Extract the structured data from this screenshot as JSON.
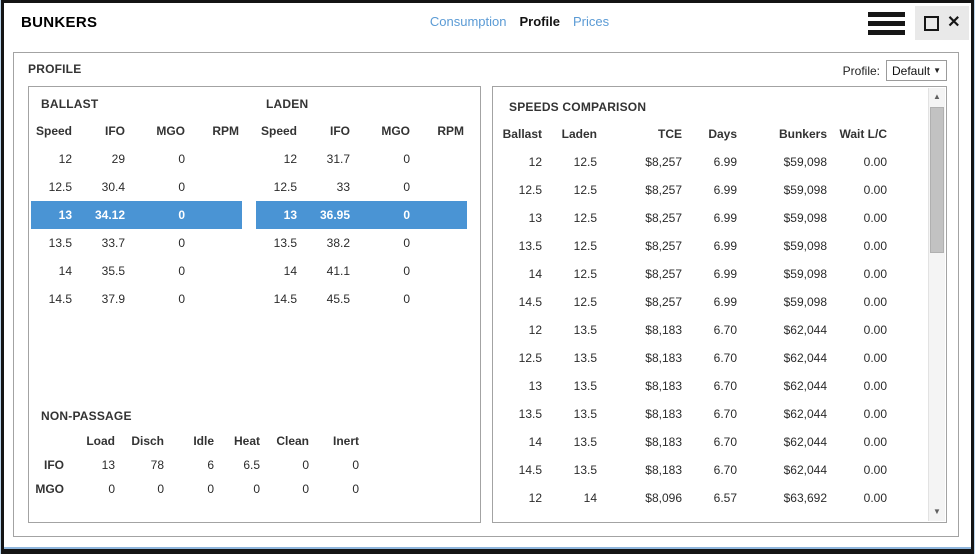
{
  "window": {
    "title": "BUNKERS",
    "tabs": [
      {
        "label": "Consumption",
        "active": false
      },
      {
        "label": "Profile",
        "active": true
      },
      {
        "label": "Prices",
        "active": false
      }
    ]
  },
  "icons": {
    "dropdown_arrow": "▼",
    "scroll_up": "▲",
    "scroll_down": "▼",
    "close": "✕"
  },
  "colors": {
    "highlight": "#4a94d4",
    "link": "#5b9bd5",
    "halo": "#8fb6dd"
  },
  "profile_panel": {
    "title": "PROFILE",
    "selector_label": "Profile:",
    "selector_value": "Default"
  },
  "ballast": {
    "title": "BALLAST",
    "headers": [
      "Speed",
      "IFO",
      "MGO",
      "RPM"
    ],
    "rows": [
      [
        "12",
        "29",
        "0",
        ""
      ],
      [
        "12.5",
        "30.4",
        "0",
        ""
      ],
      [
        "13",
        "34.12",
        "0",
        ""
      ],
      [
        "13.5",
        "33.7",
        "0",
        ""
      ],
      [
        "14",
        "35.5",
        "0",
        ""
      ],
      [
        "14.5",
        "37.9",
        "0",
        ""
      ]
    ],
    "selected_index": 2
  },
  "laden": {
    "title": "LADEN",
    "headers": [
      "Speed",
      "IFO",
      "MGO",
      "RPM"
    ],
    "rows": [
      [
        "12",
        "31.7",
        "0",
        ""
      ],
      [
        "12.5",
        "33",
        "0",
        ""
      ],
      [
        "13",
        "36.95",
        "0",
        ""
      ],
      [
        "13.5",
        "38.2",
        "0",
        ""
      ],
      [
        "14",
        "41.1",
        "0",
        ""
      ],
      [
        "14.5",
        "45.5",
        "0",
        ""
      ]
    ],
    "selected_index": 2
  },
  "non_passage": {
    "title": "NON-PASSAGE",
    "headers": [
      "",
      "Load",
      "Disch",
      "Idle",
      "Heat",
      "Clean",
      "Inert"
    ],
    "rows": [
      [
        "IFO",
        "13",
        "78",
        "6",
        "6.5",
        "0",
        "0"
      ],
      [
        "MGO",
        "0",
        "0",
        "0",
        "0",
        "0",
        "0"
      ]
    ]
  },
  "speeds_comparison": {
    "title": "SPEEDS COMPARISON",
    "headers": [
      "Ballast",
      "Laden",
      "TCE",
      "Days",
      "Bunkers",
      "Wait L/C"
    ],
    "rows": [
      [
        "12",
        "12.5",
        "$8,257",
        "6.99",
        "$59,098",
        "0.00"
      ],
      [
        "12.5",
        "12.5",
        "$8,257",
        "6.99",
        "$59,098",
        "0.00"
      ],
      [
        "13",
        "12.5",
        "$8,257",
        "6.99",
        "$59,098",
        "0.00"
      ],
      [
        "13.5",
        "12.5",
        "$8,257",
        "6.99",
        "$59,098",
        "0.00"
      ],
      [
        "14",
        "12.5",
        "$8,257",
        "6.99",
        "$59,098",
        "0.00"
      ],
      [
        "14.5",
        "12.5",
        "$8,257",
        "6.99",
        "$59,098",
        "0.00"
      ],
      [
        "12",
        "13.5",
        "$8,183",
        "6.70",
        "$62,044",
        "0.00"
      ],
      [
        "12.5",
        "13.5",
        "$8,183",
        "6.70",
        "$62,044",
        "0.00"
      ],
      [
        "13",
        "13.5",
        "$8,183",
        "6.70",
        "$62,044",
        "0.00"
      ],
      [
        "13.5",
        "13.5",
        "$8,183",
        "6.70",
        "$62,044",
        "0.00"
      ],
      [
        "14",
        "13.5",
        "$8,183",
        "6.70",
        "$62,044",
        "0.00"
      ],
      [
        "14.5",
        "13.5",
        "$8,183",
        "6.70",
        "$62,044",
        "0.00"
      ],
      [
        "12",
        "14",
        "$8,096",
        "6.57",
        "$63,692",
        "0.00"
      ]
    ]
  }
}
